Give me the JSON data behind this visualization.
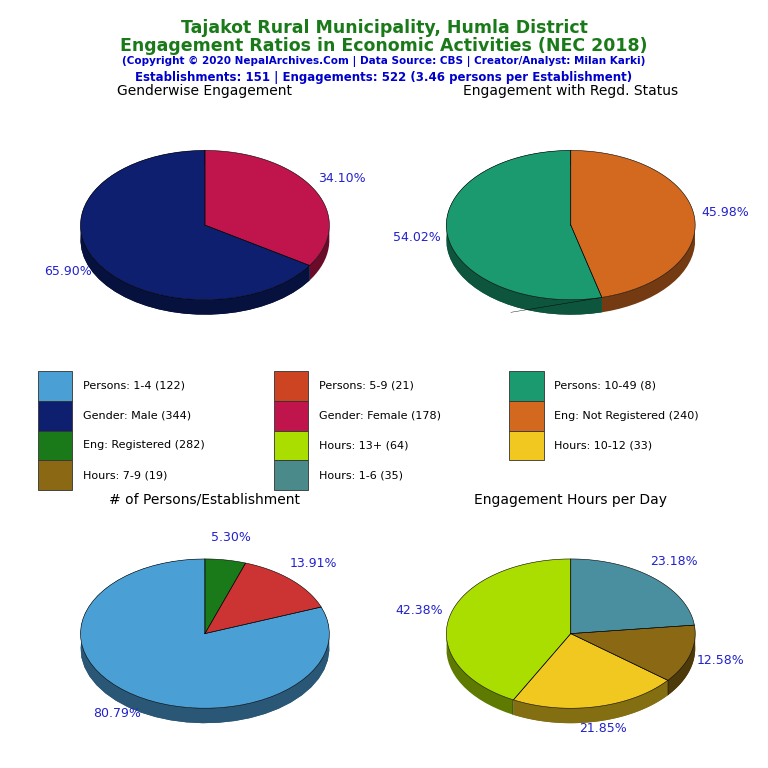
{
  "title_line1": "Tajakot Rural Municipality, Humla District",
  "title_line2": "Engagement Ratios in Economic Activities (NEC 2018)",
  "subtitle": "(Copyright © 2020 NepalArchives.Com | Data Source: CBS | Creator/Analyst: Milan Karki)",
  "stats_line": "Establishments: 151 | Engagements: 522 (3.46 persons per Establishment)",
  "title_color": "#1a7a1a",
  "subtitle_color": "#0000cc",
  "stats_color": "#0000cc",
  "pie1_title": "Genderwise Engagement",
  "pie1_values": [
    65.9,
    34.1
  ],
  "pie1_colors": [
    "#0d1f6e",
    "#c0144c"
  ],
  "pie1_labels": [
    "65.90%",
    "34.10%"
  ],
  "pie1_startangle": 90,
  "pie2_title": "Engagement with Regd. Status",
  "pie2_values": [
    54.02,
    45.98
  ],
  "pie2_colors": [
    "#1a9a6e",
    "#d2691e"
  ],
  "pie2_labels": [
    "54.02%",
    "45.98%"
  ],
  "pie2_startangle": 90,
  "pie3_title": "# of Persons/Establishment",
  "pie3_values": [
    80.79,
    13.91,
    5.3
  ],
  "pie3_colors": [
    "#4a9fd4",
    "#cc3333",
    "#1a7a1a"
  ],
  "pie3_labels": [
    "80.79%",
    "13.91%",
    "5.30%"
  ],
  "pie3_startangle": 90,
  "pie4_title": "Engagement Hours per Day",
  "pie4_values": [
    42.38,
    21.85,
    12.58,
    23.18
  ],
  "pie4_colors": [
    "#aadd00",
    "#f0c820",
    "#8b6914",
    "#4a8fa0"
  ],
  "pie4_labels": [
    "42.38%",
    "21.85%",
    "12.58%",
    "23.18%"
  ],
  "pie4_startangle": 90,
  "label_color": "#2222cc",
  "legend_items": [
    {
      "label": "Persons: 1-4 (122)",
      "color": "#4a9fd4"
    },
    {
      "label": "Persons: 5-9 (21)",
      "color": "#cc4422"
    },
    {
      "label": "Persons: 10-49 (8)",
      "color": "#1a9a6e"
    },
    {
      "label": "Gender: Male (344)",
      "color": "#0d1f6e"
    },
    {
      "label": "Gender: Female (178)",
      "color": "#c0144c"
    },
    {
      "label": "Eng: Not Registered (240)",
      "color": "#d2691e"
    },
    {
      "label": "Eng: Registered (282)",
      "color": "#1a7a1a"
    },
    {
      "label": "Hours: 13+ (64)",
      "color": "#aadd00"
    },
    {
      "label": "Hours: 10-12 (33)",
      "color": "#f0c820"
    },
    {
      "label": "Hours: 7-9 (19)",
      "color": "#8b6914"
    },
    {
      "label": "Hours: 1-6 (35)",
      "color": "#4a8a8a"
    }
  ],
  "background_color": "#ffffff"
}
